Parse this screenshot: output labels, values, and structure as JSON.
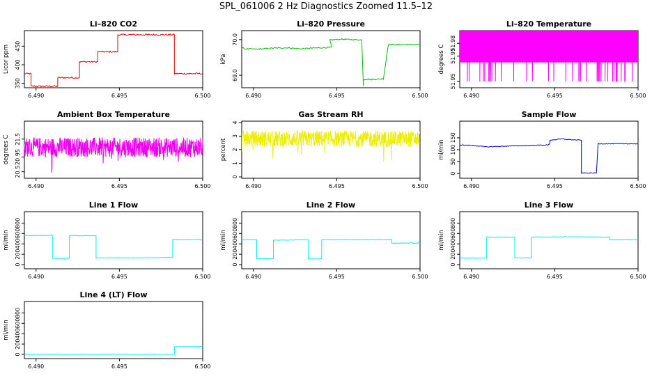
{
  "figure_title": "SPL_061006  2 Hz Diagnostics Zoomed 11.5–12",
  "chart_data": [
    {
      "type": "line",
      "title": "Li–820 CO2",
      "xlabel": "",
      "ylabel": "Licor ppm",
      "color": "#dd0000",
      "xlim": [
        6.4893,
        6.5
      ],
      "ylim": [
        338,
        492
      ],
      "xticks": [
        "6.490",
        "6.495",
        "6.500"
      ],
      "xtick_values": [
        6.49,
        6.495,
        6.5
      ],
      "yticks": [
        {
          "v": 350,
          "l": "350"
        },
        {
          "v": 400,
          "l": "400"
        },
        {
          "v": 450,
          "l": "450"
        }
      ],
      "noise": 2,
      "series": [
        {
          "x": [
            6.4893,
            6.4897,
            6.4897,
            6.4913,
            6.4913,
            6.4926,
            6.4926,
            6.4937,
            6.4937,
            6.4949,
            6.4949,
            6.4983,
            6.4983,
            6.5
          ],
          "y": [
            376,
            376,
            342,
            342,
            365,
            365,
            408,
            408,
            435,
            435,
            481,
            481,
            376,
            376
          ]
        }
      ]
    },
    {
      "type": "line",
      "title": "Li–820 Pressure",
      "xlabel": "",
      "ylabel": "kPa",
      "color": "#00bb00",
      "xlim": [
        6.4893,
        6.5
      ],
      "ylim": [
        68.65,
        70.25
      ],
      "xticks": [
        "6.490",
        "6.495",
        "6.500"
      ],
      "xtick_values": [
        6.49,
        6.495,
        6.5
      ],
      "yticks": [
        {
          "v": 69.0,
          "l": "69.0"
        },
        {
          "v": 70.0,
          "l": "70.0"
        }
      ],
      "noise": 0.015,
      "series": [
        {
          "x": [
            6.4893,
            6.4895,
            6.4902,
            6.4912,
            6.4921,
            6.4928,
            6.4935,
            6.4947,
            6.4946,
            6.4946,
            6.4953,
            6.4965,
            6.4966,
            6.4966,
            6.4969,
            6.497,
            6.4978,
            6.4981,
            6.4981,
            6.4995,
            6.5
          ],
          "y": [
            69.77,
            69.74,
            69.73,
            69.76,
            69.77,
            69.74,
            69.76,
            69.78,
            69.97,
            69.99,
            70.01,
            69.99,
            68.7,
            68.88,
            68.89,
            68.88,
            68.9,
            69.86,
            69.86,
            69.86,
            69.86
          ]
        }
      ]
    },
    {
      "type": "line",
      "title": "Li–820 Temperature",
      "xlabel": "",
      "ylabel": "degrees C",
      "color": "#ff00ff",
      "xlim": [
        6.4893,
        6.5
      ],
      "ylim": [
        51.945,
        51.99
      ],
      "xticks": [
        "6.490",
        "6.495",
        "6.500"
      ],
      "xtick_values": [
        6.49,
        6.495,
        6.5
      ],
      "yticks": [
        {
          "v": 51.95,
          "l": "51.95"
        },
        {
          "v": 51.97,
          "l": "51.97"
        },
        {
          "v": 51.98,
          "l": "51.98"
        }
      ],
      "pattern": "temp",
      "levels": [
        51.965,
        51.99,
        51.95
      ]
    },
    {
      "type": "line",
      "title": "Ambient Box Temperature",
      "xlabel": "",
      "ylabel": "degrees C",
      "color": "#ee00ee",
      "xlim": [
        6.4893,
        6.5
      ],
      "ylim": [
        20.3,
        22.05
      ],
      "xticks": [
        "6.490",
        "6.495",
        "6.500"
      ],
      "xtick_values": [
        6.49,
        6.495,
        6.5
      ],
      "yticks": [
        {
          "v": 20.5,
          "l": "20.5"
        },
        {
          "v": 20.95,
          "l": "20.95"
        },
        {
          "v": 21.5,
          "l": "21.5"
        }
      ],
      "pattern": "noise",
      "mean": 21.25,
      "spread": 0.6,
      "series": [
        {
          "x": [
            6.4893,
            6.5
          ],
          "y": [
            21.25,
            21.25
          ]
        }
      ]
    },
    {
      "type": "line",
      "title": "Gas Stream RH",
      "xlabel": "",
      "ylabel": "percent",
      "color": "#eeee00",
      "xlim": [
        6.4893,
        6.5
      ],
      "ylim": [
        -0.1,
        4.1
      ],
      "xticks": [
        "6.490",
        "6.495",
        "6.500"
      ],
      "xtick_values": [
        6.49,
        6.495,
        6.5
      ],
      "yticks": [
        {
          "v": 0,
          "l": "0"
        },
        {
          "v": 1,
          "l": "1"
        },
        {
          "v": 2,
          "l": "2"
        },
        {
          "v": 3,
          "l": "3"
        },
        {
          "v": 4,
          "l": "4"
        }
      ],
      "pattern": "noise",
      "mean": 2.8,
      "spread": 1.2,
      "series": [
        {
          "x": [
            6.4893,
            6.5
          ],
          "y": [
            2.8,
            2.8
          ]
        }
      ]
    },
    {
      "type": "line",
      "title": "Sample Flow",
      "xlabel": "",
      "ylabel": "ml/min",
      "color": "#0000cc",
      "xlim": [
        6.4893,
        6.5
      ],
      "ylim": [
        -20,
        220
      ],
      "xticks": [
        "6.490",
        "6.495",
        "6.500"
      ],
      "xtick_values": [
        6.49,
        6.495,
        6.5
      ],
      "yticks": [
        {
          "v": 0,
          "l": "0"
        },
        {
          "v": 50,
          "l": "50"
        },
        {
          "v": 100,
          "l": "100"
        },
        {
          "v": 150,
          "l": "150"
        }
      ],
      "noise": 1.5,
      "series": [
        {
          "x": [
            6.4893,
            6.4901,
            6.4909,
            6.4925,
            6.4935,
            6.4946,
            6.4947,
            6.4947,
            6.4954,
            6.496,
            6.4966,
            6.4966,
            6.4975,
            6.4975,
            6.4976,
            6.5
          ],
          "y": [
            120,
            118,
            112,
            116,
            118,
            120,
            124,
            140,
            145,
            142,
            140,
            2,
            2,
            2,
            125,
            125
          ]
        }
      ]
    },
    {
      "type": "line",
      "title": "Line 1 Flow",
      "xlabel": "",
      "ylabel": "ml/min",
      "color": "#00eeee",
      "xlim": [
        6.4893,
        6.5
      ],
      "ylim": [
        -80,
        1020
      ],
      "xticks": [
        "6.490",
        "6.495",
        "6.500"
      ],
      "xtick_values": [
        6.49,
        6.495,
        6.5
      ],
      "yticks": [
        {
          "v": 0,
          "l": "0"
        },
        {
          "v": 200,
          "l": "200"
        },
        {
          "v": 400,
          "l": "400"
        },
        {
          "v": 600,
          "l": "600"
        },
        {
          "v": 800,
          "l": "800"
        }
      ],
      "noise": 5,
      "series": [
        {
          "x": [
            6.4893,
            6.4902,
            6.491,
            6.491,
            6.492,
            6.492,
            6.4936,
            6.4936,
            6.4965,
            6.4974,
            6.4982,
            6.4982,
            6.5
          ],
          "y": [
            560,
            560,
            565,
            120,
            120,
            560,
            555,
            130,
            130,
            135,
            140,
            480,
            480
          ]
        }
      ]
    },
    {
      "type": "line",
      "title": "Line 2 Flow",
      "xlabel": "",
      "ylabel": "ml/min",
      "color": "#00eeee",
      "xlim": [
        6.4893,
        6.5
      ],
      "ylim": [
        -80,
        1020
      ],
      "xticks": [
        "6.490",
        "6.495",
        "6.500"
      ],
      "xtick_values": [
        6.49,
        6.495,
        6.5
      ],
      "yticks": [
        {
          "v": 0,
          "l": "0"
        },
        {
          "v": 200,
          "l": "200"
        },
        {
          "v": 400,
          "l": "400"
        },
        {
          "v": 600,
          "l": "600"
        },
        {
          "v": 800,
          "l": "800"
        }
      ],
      "noise": 5,
      "series": [
        {
          "x": [
            6.4893,
            6.4902,
            6.4902,
            6.4912,
            6.4912,
            6.4933,
            6.4933,
            6.4941,
            6.4941,
            6.4965,
            6.4983,
            6.4983,
            6.5
          ],
          "y": [
            480,
            480,
            115,
            115,
            470,
            480,
            110,
            110,
            480,
            480,
            485,
            415,
            415
          ]
        }
      ]
    },
    {
      "type": "line",
      "title": "Line 3 Flow",
      "xlabel": "",
      "ylabel": "ml/min",
      "color": "#00eeee",
      "xlim": [
        6.4893,
        6.5
      ],
      "ylim": [
        -80,
        1020
      ],
      "xticks": [
        "6.490",
        "6.495",
        "6.500"
      ],
      "xtick_values": [
        6.49,
        6.495,
        6.5
      ],
      "yticks": [
        {
          "v": 0,
          "l": "0"
        },
        {
          "v": 200,
          "l": "200"
        },
        {
          "v": 400,
          "l": "400"
        },
        {
          "v": 600,
          "l": "600"
        },
        {
          "v": 800,
          "l": "800"
        }
      ],
      "noise": 5,
      "series": [
        {
          "x": [
            6.4893,
            6.4909,
            6.4909,
            6.4926,
            6.4926,
            6.4936,
            6.4936,
            6.4955,
            6.4983,
            6.4983,
            6.5
          ],
          "y": [
            125,
            125,
            530,
            530,
            130,
            130,
            530,
            535,
            530,
            480,
            480
          ]
        }
      ]
    },
    {
      "type": "line",
      "title": "Line 4 (LT) Flow",
      "xlabel": "",
      "ylabel": "ml/min",
      "color": "#00eeee",
      "xlim": [
        6.4893,
        6.5
      ],
      "ylim": [
        -80,
        1020
      ],
      "xticks": [
        "6.490",
        "6.495",
        "6.500"
      ],
      "xtick_values": [
        6.49,
        6.495,
        6.5
      ],
      "yticks": [
        {
          "v": 0,
          "l": "0"
        },
        {
          "v": 200,
          "l": "200"
        },
        {
          "v": 400,
          "l": "400"
        },
        {
          "v": 600,
          "l": "600"
        },
        {
          "v": 800,
          "l": "800"
        }
      ],
      "noise": 2,
      "series": [
        {
          "x": [
            6.4893,
            6.4983,
            6.4983,
            6.5
          ],
          "y": [
            2,
            2,
            150,
            150
          ]
        }
      ]
    }
  ]
}
